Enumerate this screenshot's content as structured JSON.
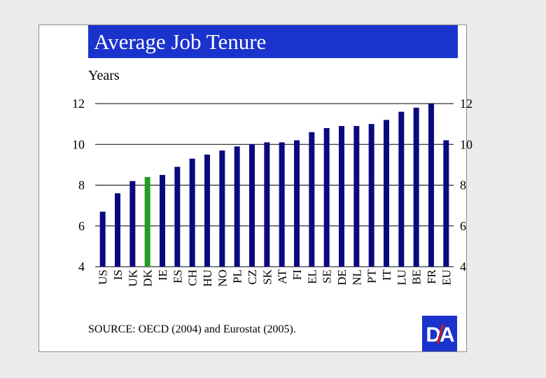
{
  "title": "Average Job Tenure",
  "source": "SOURCE: OECD (2004) and Eurostat (2005).",
  "logo_text": "DA",
  "colors": {
    "bar": "#0a0a80",
    "highlight": "#1f9e1f",
    "title_bg": "#1a33cc",
    "logo_slash": "#cc1a1a"
  },
  "chart_data": {
    "type": "bar",
    "title": "Average Job Tenure",
    "ylabel": "Years",
    "xlabel": "",
    "ylim": [
      4,
      12
    ],
    "yticks": [
      4,
      6,
      8,
      10,
      12
    ],
    "grid": true,
    "highlight_category": "DK",
    "categories": [
      "US",
      "IS",
      "UK",
      "DK",
      "IE",
      "ES",
      "CH",
      "HU",
      "NO",
      "PL",
      "CZ",
      "SK",
      "AT",
      "FI",
      "EL",
      "SE",
      "DE",
      "NL",
      "PT",
      "IT",
      "LU",
      "BE",
      "FR",
      "EU"
    ],
    "values": [
      6.7,
      7.6,
      8.2,
      8.4,
      8.5,
      8.9,
      9.3,
      9.5,
      9.7,
      9.9,
      10.0,
      10.1,
      10.1,
      10.2,
      10.6,
      10.8,
      10.9,
      10.9,
      11.0,
      11.2,
      11.6,
      11.8,
      12.0,
      10.2
    ]
  }
}
